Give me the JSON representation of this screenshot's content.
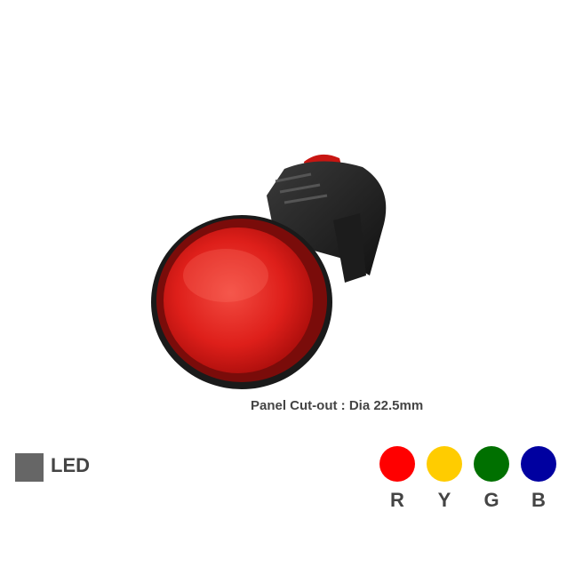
{
  "caption": "Panel Cut-out : Dia 22.5mm",
  "legend": {
    "label": "LED",
    "swatch_color": "#666666"
  },
  "colors": [
    {
      "letter": "R",
      "hex": "#ff0000"
    },
    {
      "letter": "Y",
      "hex": "#ffcc00"
    },
    {
      "letter": "G",
      "hex": "#007000"
    },
    {
      "letter": "B",
      "hex": "#0000a0"
    }
  ]
}
